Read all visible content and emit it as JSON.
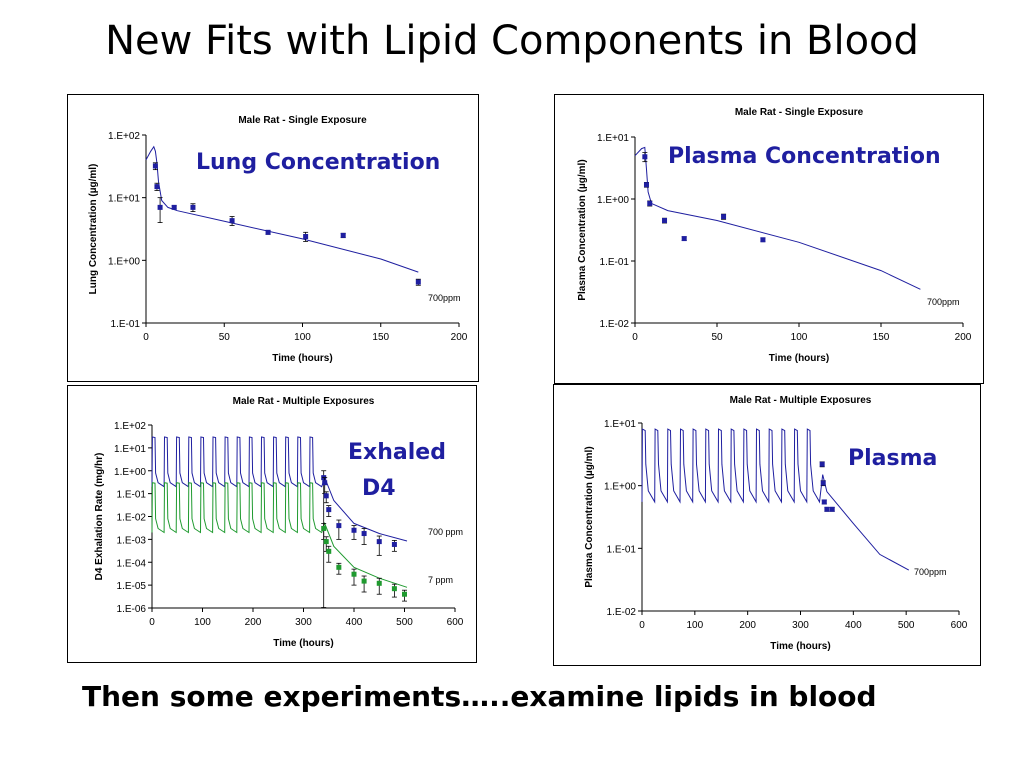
{
  "slide": {
    "title": "New Fits with Lipid Components in Blood",
    "footer": "Then some experiments…..examine lipids in blood"
  },
  "colors": {
    "blue": "#1f1fa0",
    "green": "#1f9a2f",
    "black": "#000000"
  },
  "chart_data": [
    {
      "type": "scatter",
      "title": "Male Rat - Single Exposure",
      "overlay_label": "Lung Concentration",
      "xlabel": "Time (hours)",
      "ylabel": "Lung Concentration (µg/ml)",
      "log_y": true,
      "xlim": [
        0,
        200
      ],
      "ylim": [
        0.1,
        100
      ],
      "x_ticks": [
        "0",
        "50",
        "100",
        "150",
        "200"
      ],
      "y_ticks": [
        "1.E-01",
        "1.E+00",
        "1.E+01",
        "1.E+02"
      ],
      "series": [
        {
          "name": "700ppm",
          "role": "model",
          "points": [
            [
              0,
              40
            ],
            [
              3,
              55
            ],
            [
              5,
              65
            ],
            [
              6,
              55
            ],
            [
              7,
              35
            ],
            [
              8,
              18
            ],
            [
              10,
              9
            ],
            [
              14,
              7
            ],
            [
              20,
              6.2
            ],
            [
              50,
              4.2
            ],
            [
              100,
              2.2
            ],
            [
              150,
              1.05
            ],
            [
              174,
              0.65
            ]
          ]
        },
        {
          "role": "data",
          "points": [
            [
              6,
              32,
              4
            ],
            [
              7,
              15,
              2
            ],
            [
              9,
              7,
              3
            ],
            [
              18,
              7,
              0.4
            ],
            [
              30,
              7,
              1
            ],
            [
              55,
              4.3,
              0.7
            ],
            [
              78,
              2.8,
              0.2
            ],
            [
              102,
              2.4,
              0.4
            ],
            [
              126,
              2.5,
              0.2
            ],
            [
              174,
              0.45,
              0.05
            ]
          ]
        }
      ],
      "annotations": [
        "700ppm"
      ]
    },
    {
      "type": "scatter",
      "title": "Male Rat - Single Exposure",
      "overlay_label": "Plasma Concentration",
      "xlabel": "Time (hours)",
      "ylabel": "Plasma Concentration (µg/ml)",
      "log_y": true,
      "xlim": [
        0,
        200
      ],
      "ylim": [
        0.01,
        10
      ],
      "x_ticks": [
        "0",
        "50",
        "100",
        "150",
        "200"
      ],
      "y_ticks": [
        "1.E-02",
        "1.E-01",
        "1.E+00",
        "1.E+01"
      ],
      "series": [
        {
          "name": "700ppm",
          "role": "model",
          "points": [
            [
              0,
              5
            ],
            [
              4,
              6.5
            ],
            [
              6,
              6.8
            ],
            [
              7,
              3
            ],
            [
              8,
              1.3
            ],
            [
              10,
              0.85
            ],
            [
              20,
              0.65
            ],
            [
              50,
              0.45
            ],
            [
              100,
              0.2
            ],
            [
              150,
              0.07
            ],
            [
              174,
              0.035
            ]
          ]
        },
        {
          "role": "data",
          "points": [
            [
              6,
              4.8,
              0.8
            ],
            [
              7,
              1.7,
              0.15
            ],
            [
              9,
              0.85,
              0.08
            ],
            [
              18,
              0.45,
              0.04
            ],
            [
              30,
              0.23,
              0.015
            ],
            [
              54,
              0.52,
              0.05
            ],
            [
              78,
              0.22,
              0.015
            ]
          ]
        }
      ],
      "annotations": [
        "700ppm"
      ]
    },
    {
      "type": "line",
      "title": "Male Rat - Multiple Exposures",
      "overlay_label": [
        "Exhaled",
        "D4"
      ],
      "xlabel": "Time (hours)",
      "ylabel": "D4 Exhalation Rate (mg/hr)",
      "log_y": true,
      "xlim": [
        0,
        600
      ],
      "ylim": [
        1e-06,
        100
      ],
      "x_ticks": [
        "0",
        "100",
        "200",
        "300",
        "400",
        "500",
        "600"
      ],
      "y_ticks": [
        "1.E-06",
        "1.E-05",
        "1.E-04",
        "1.E-03",
        "1.E-02",
        "1.E-01",
        "1.E+00",
        "1.E+01",
        "1.E+02"
      ],
      "exposures": {
        "count": 14,
        "start": 0,
        "interval": 24,
        "duration": 6
      },
      "series": [
        {
          "name": "700 ppm",
          "role": "model",
          "color_key": "blue",
          "peak": 30,
          "trough": 0.2,
          "decay": [
            [
              342,
              0.5
            ],
            [
              360,
              0.05
            ],
            [
              400,
              0.005
            ],
            [
              450,
              0.0018
            ],
            [
              505,
              0.00085
            ]
          ]
        },
        {
          "name": "7 ppm",
          "role": "model",
          "color_key": "green",
          "peak": 0.3,
          "trough": 0.002,
          "decay": [
            [
              342,
              0.005
            ],
            [
              360,
              0.0005
            ],
            [
              400,
              6e-05
            ],
            [
              450,
              2e-05
            ],
            [
              505,
              8e-06
            ]
          ]
        },
        {
          "name": "700 ppm",
          "role": "data",
          "color_key": "blue",
          "points": [
            [
              340,
              0.5,
              0.5
            ],
            [
              342,
              0.3,
              0.2
            ],
            [
              345,
              0.08,
              0.04
            ],
            [
              350,
              0.02,
              0.01
            ],
            [
              370,
              0.004,
              0.003
            ],
            [
              400,
              0.0025,
              0.0015
            ],
            [
              420,
              0.0018,
              0.0012
            ],
            [
              450,
              0.0008,
              0.0006
            ],
            [
              480,
              0.0006,
              0.0003
            ]
          ]
        },
        {
          "name": "7 ppm",
          "role": "data",
          "color_key": "green",
          "points": [
            [
              340,
              0.003,
              0.002
            ],
            [
              345,
              0.0008,
              0.0005
            ],
            [
              350,
              0.0003,
              0.0002
            ],
            [
              370,
              6e-05,
              3e-05
            ],
            [
              400,
              3e-05,
              2e-05
            ],
            [
              420,
              1.5e-05,
              1e-05
            ],
            [
              450,
              1.2e-05,
              8e-06
            ],
            [
              480,
              7e-06,
              4e-06
            ],
            [
              500,
              4e-06,
              2e-06
            ]
          ]
        }
      ],
      "annotations": [
        "700 ppm",
        "7 ppm"
      ]
    },
    {
      "type": "line",
      "title": "Male Rat - Multiple Exposures",
      "overlay_label": "Plasma",
      "xlabel": "Time (hours)",
      "ylabel": "Plasma Concentration (µg/ml)",
      "log_y": true,
      "xlim": [
        0,
        600
      ],
      "ylim": [
        0.01,
        10
      ],
      "x_ticks": [
        "0",
        "100",
        "200",
        "300",
        "400",
        "500",
        "600"
      ],
      "y_ticks": [
        "1.E-02",
        "1.E-01",
        "1.E+00",
        "1.E+01"
      ],
      "exposures": {
        "count": 14,
        "start": 0,
        "interval": 24,
        "duration": 6
      },
      "series": [
        {
          "name": "700ppm",
          "role": "model",
          "color_key": "blue",
          "peak": 8,
          "trough": 0.55,
          "decay": [
            [
              342,
              1.5
            ],
            [
              350,
              0.8
            ],
            [
              400,
              0.25
            ],
            [
              450,
              0.08
            ],
            [
              505,
              0.045
            ]
          ]
        },
        {
          "role": "data",
          "color_key": "blue",
          "points": [
            [
              341,
              2.2,
              0.2
            ],
            [
              343,
              1.1,
              0.1
            ],
            [
              345,
              0.55,
              0.04
            ],
            [
              350,
              0.42,
              0.03
            ],
            [
              360,
              0.42,
              0.03
            ]
          ]
        }
      ],
      "annotations": [
        "700ppm"
      ]
    }
  ]
}
